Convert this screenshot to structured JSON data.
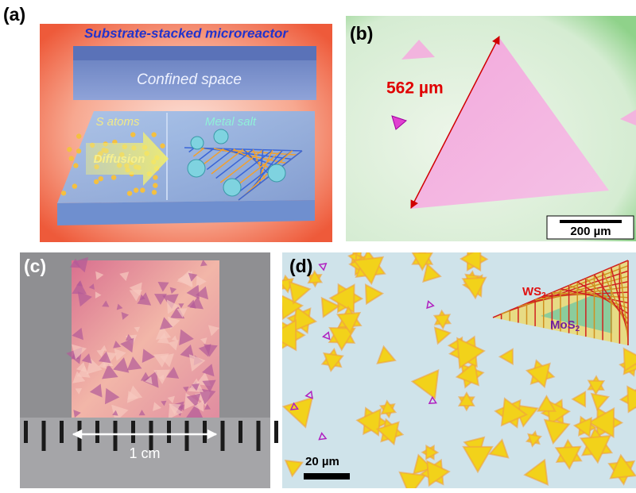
{
  "panels": [
    {
      "label": "(a)",
      "title": "Substrate-stacked microreactor",
      "top_slab": "Confined space",
      "left_text": "S atoms",
      "right_text": "Metal salt",
      "arrow_text": "Diffusion"
    },
    {
      "label": "(b)",
      "measure": "562 µm",
      "scale_bar": "200 µm"
    },
    {
      "label": "(c)",
      "measure": "1 cm"
    },
    {
      "label": "(d)",
      "outer": {
        "text": "WS",
        "sub": "2"
      },
      "inner": {
        "text": "MoS",
        "sub": "2"
      },
      "scale_bar": "20 µm"
    }
  ]
}
